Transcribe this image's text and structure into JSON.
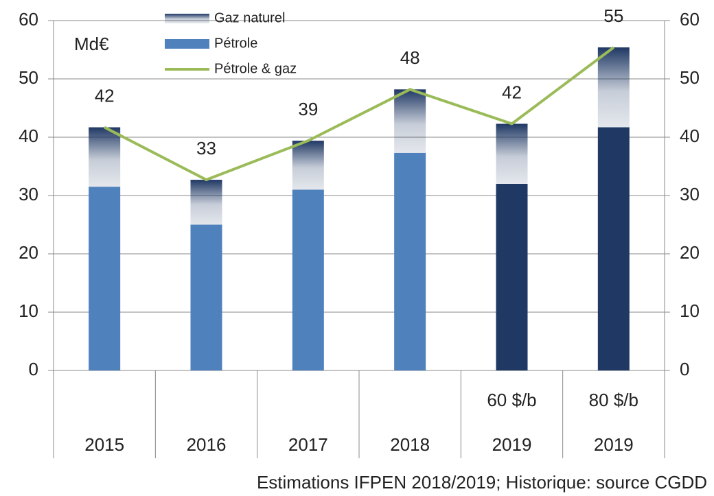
{
  "chart_data": {
    "type": "bar",
    "stacked": true,
    "unit_label": "Md€",
    "source": "Estimations IFPEN 2018/2019; Historique: source CGDD",
    "categories": [
      "2015",
      "2016",
      "2017",
      "2018",
      "2019",
      "2019"
    ],
    "subcategories": [
      null,
      null,
      null,
      null,
      "60 $/b",
      "80 $/b"
    ],
    "series": [
      {
        "name": "Pétrole",
        "color": "#4f81bd",
        "colors": [
          "#4f81bd",
          "#4f81bd",
          "#4f81bd",
          "#4f81bd",
          "#1f3864",
          "#1f3864"
        ],
        "values": [
          31.5,
          25,
          31,
          37.3,
          32,
          41.7
        ]
      },
      {
        "name": "Gaz naturel",
        "color": "#1f3864",
        "gradient": true,
        "values": [
          10.2,
          7.7,
          8.4,
          10.9,
          10.3,
          13.7
        ]
      },
      {
        "name": "Pétrole & gaz",
        "type": "line",
        "color": "#9bbb59",
        "values": [
          41.7,
          32.7,
          39.4,
          48.2,
          42.3,
          55.4
        ],
        "value_labels": [
          "42",
          "33",
          "39",
          "48",
          "42",
          "55"
        ]
      }
    ],
    "legend_order": [
      1,
      0,
      2
    ],
    "ylim": [
      0,
      60
    ],
    "yticks": [
      0,
      10,
      20,
      30,
      40,
      50,
      60
    ],
    "y2lim": [
      0,
      60
    ],
    "y2ticks": [
      0,
      10,
      20,
      30,
      40,
      50,
      60
    ],
    "grid": true
  }
}
